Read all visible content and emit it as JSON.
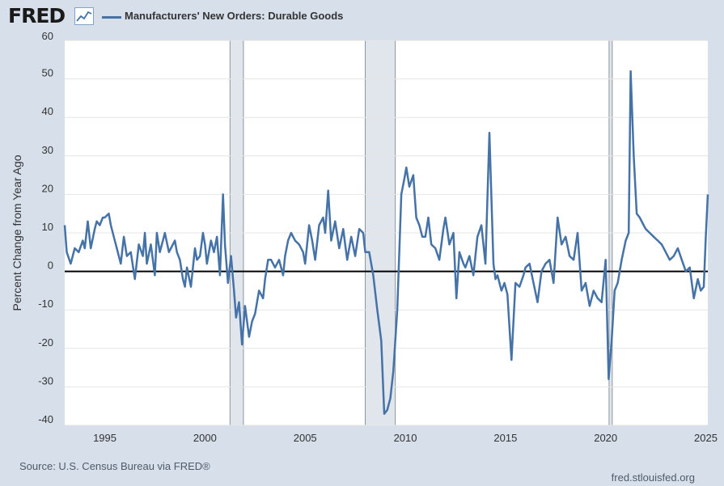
{
  "header": {
    "logo_text": "FRED",
    "logo_icon": "line-graph-icon"
  },
  "footer": {
    "source": "Source: U.S. Census Bureau via FRED®",
    "site": "fred.stlouisfed.org"
  },
  "colors": {
    "background": "#d6dfea",
    "plot_background": "#ffffff",
    "series_line": "#4572a7",
    "zero_line": "#000000",
    "recession_shade": "#e1e6ec",
    "grid": "#e6e6e6"
  },
  "chart_data": {
    "type": "line",
    "title": "",
    "legend": [
      "Manufacturers' New Orders: Durable Goods"
    ],
    "legend_placement": "top-left",
    "ylabel": "Percent Change from Year Ago",
    "xlabel": "",
    "xlim": [
      1993.0,
      2025.1
    ],
    "ylim": [
      -40,
      60
    ],
    "y_ticks": [
      60,
      50,
      40,
      30,
      20,
      10,
      0,
      -10,
      -20,
      -30,
      -40
    ],
    "x_ticks": [
      1995,
      2000,
      2005,
      2010,
      2015,
      2020,
      2025
    ],
    "grid": "horizontal",
    "reference_line": 0,
    "recessions": [
      [
        2001.25,
        2001.92
      ],
      [
        2008.0,
        2009.5
      ],
      [
        2020.17,
        2020.33
      ]
    ],
    "series": [
      {
        "name": "Manufacturers' New Orders: Durable Goods",
        "x": [
          1993.0,
          1993.1,
          1993.3,
          1993.5,
          1993.7,
          1993.9,
          1994.0,
          1994.15,
          1994.3,
          1994.5,
          1994.6,
          1994.75,
          1994.9,
          1995.0,
          1995.2,
          1995.3,
          1995.5,
          1995.6,
          1995.8,
          1995.95,
          1996.1,
          1996.3,
          1996.5,
          1996.7,
          1996.9,
          1997.0,
          1997.1,
          1997.3,
          1997.5,
          1997.6,
          1997.75,
          1997.9,
          1998.0,
          1998.2,
          1998.3,
          1998.5,
          1998.6,
          1998.75,
          1998.9,
          1999.0,
          1999.1,
          1999.3,
          1999.5,
          1999.6,
          1999.75,
          1999.9,
          2000.0,
          2000.1,
          2000.3,
          2000.45,
          2000.6,
          2000.75,
          2000.9,
          2001.0,
          2001.15,
          2001.3,
          2001.45,
          2001.55,
          2001.7,
          2001.85,
          2002.0,
          2002.2,
          2002.35,
          2002.5,
          2002.7,
          2002.9,
          2003.0,
          2003.15,
          2003.3,
          2003.5,
          2003.7,
          2003.9,
          2004.0,
          2004.15,
          2004.3,
          2004.5,
          2004.7,
          2004.9,
          2005.0,
          2005.2,
          2005.35,
          2005.5,
          2005.7,
          2005.9,
          2006.0,
          2006.15,
          2006.3,
          2006.5,
          2006.7,
          2006.9,
          2007.0,
          2007.1,
          2007.3,
          2007.5,
          2007.7,
          2007.9,
          2008.0,
          2008.2,
          2008.4,
          2008.6,
          2008.8,
          2008.95,
          2009.1,
          2009.25,
          2009.4,
          2009.6,
          2009.8,
          2009.95,
          2010.05,
          2010.2,
          2010.4,
          2010.55,
          2010.7,
          2010.85,
          2011.0,
          2011.15,
          2011.3,
          2011.5,
          2011.7,
          2011.9,
          2012.0,
          2012.2,
          2012.4,
          2012.55,
          2012.7,
          2012.9,
          2013.0,
          2013.2,
          2013.4,
          2013.6,
          2013.8,
          2014.0,
          2014.2,
          2014.4,
          2014.5,
          2014.6,
          2014.8,
          2014.95,
          2015.1,
          2015.3,
          2015.5,
          2015.7,
          2015.9,
          2016.0,
          2016.2,
          2016.4,
          2016.6,
          2016.8,
          2017.0,
          2017.2,
          2017.4,
          2017.6,
          2017.8,
          2018.0,
          2018.2,
          2018.4,
          2018.6,
          2018.8,
          2019.0,
          2019.2,
          2019.4,
          2019.6,
          2019.8,
          2020.0,
          2020.15,
          2020.3,
          2020.45,
          2020.6,
          2020.8,
          2021.0,
          2021.15,
          2021.25,
          2021.4,
          2021.55,
          2021.7,
          2021.9,
          2022.0,
          2022.2,
          2022.4,
          2022.6,
          2022.8,
          2023.0,
          2023.2,
          2023.4,
          2023.6,
          2023.8,
          2024.0,
          2024.2,
          2024.4,
          2024.6,
          2024.75,
          2024.9,
          2025.0,
          2025.1
        ],
        "y": [
          12,
          5,
          2,
          6,
          5,
          8,
          6,
          13,
          6,
          11,
          13,
          12,
          14,
          14,
          15,
          12,
          8,
          6,
          2,
          9,
          4,
          5,
          -2,
          7,
          4,
          10,
          2,
          7,
          -1,
          10,
          5,
          8,
          10,
          5,
          6,
          8,
          5,
          3,
          -2,
          -4,
          1,
          -4,
          6,
          3,
          4,
          10,
          7,
          2,
          8,
          5,
          9,
          -1,
          20,
          7,
          -3,
          4,
          -5,
          -12,
          -8,
          -19,
          -9,
          -17,
          -13,
          -11,
          -5,
          -7,
          -2,
          3,
          3,
          1,
          3,
          -1,
          4,
          8,
          10,
          8,
          7,
          5,
          2,
          12,
          8,
          3,
          12,
          14,
          10,
          21,
          8,
          13,
          6,
          11,
          7,
          3,
          9,
          4,
          11,
          10,
          5,
          5,
          -1,
          -10,
          -18,
          -37,
          -36,
          -33,
          -26,
          -10,
          20,
          24,
          27,
          22,
          25,
          14,
          12,
          9,
          9,
          14,
          7,
          6,
          3,
          11,
          14,
          7,
          10,
          -7,
          5,
          2,
          1,
          4,
          -1,
          9,
          12,
          2,
          36,
          2,
          -2,
          -1,
          -5,
          -3,
          -6,
          -23,
          -3,
          -4,
          -1,
          1,
          2,
          -3,
          -8,
          0,
          2,
          3,
          -3,
          14,
          7,
          9,
          4,
          3,
          10,
          -5,
          -3,
          -9,
          -5,
          -7,
          -8,
          3,
          -28,
          -18,
          -5,
          -3,
          3,
          8,
          10,
          52,
          30,
          15,
          14,
          12,
          11,
          10,
          9,
          8,
          7,
          5,
          3,
          4,
          6,
          3,
          0,
          1,
          -7,
          -2,
          -5,
          -4,
          9,
          20
        ]
      }
    ]
  }
}
